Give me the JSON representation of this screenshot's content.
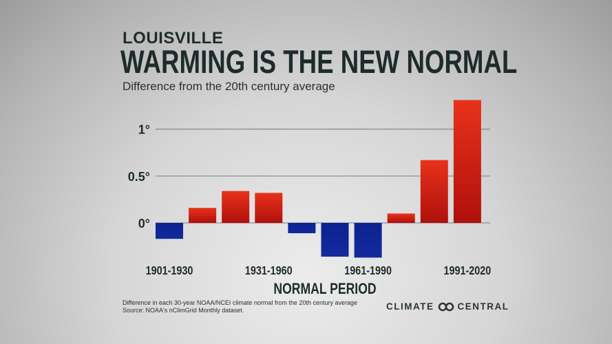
{
  "header": {
    "city": "LOUISVILLE",
    "title": "WARMING IS THE NEW NORMAL",
    "subtitle": "Difference from the 20th century average"
  },
  "chart_data": {
    "type": "bar",
    "title": "WARMING IS THE NEW NORMAL",
    "subtitle": "Difference from the 20th century average",
    "xlabel": "NORMAL PERIOD",
    "ylabel": "",
    "categories": [
      "1901-1930",
      "",
      "",
      "1931-1960",
      "",
      "",
      "1961-1990",
      "",
      "",
      "1991-2020"
    ],
    "values": [
      -0.17,
      0.16,
      0.34,
      0.32,
      -0.11,
      -0.36,
      -0.37,
      0.1,
      0.67,
      1.31
    ],
    "yticks": [
      {
        "value": 0,
        "label": "0°"
      },
      {
        "value": 0.5,
        "label": "0.5°"
      },
      {
        "value": 1,
        "label": "1°"
      }
    ],
    "ylim": [
      -0.45,
      1.35
    ],
    "grid": true,
    "colors": {
      "positive": "#c8160f",
      "positive_top": "#e8321a",
      "negative": "#0d2294"
    }
  },
  "footer": {
    "note_line1": "Difference in each 30-year NOAA/NCEI climate normal from the 20th century average",
    "note_line2": "Source: NOAA's nClimGrid Monthly dataset.",
    "logo_left": "CLIMATE",
    "logo_right": "CENTRAL"
  }
}
